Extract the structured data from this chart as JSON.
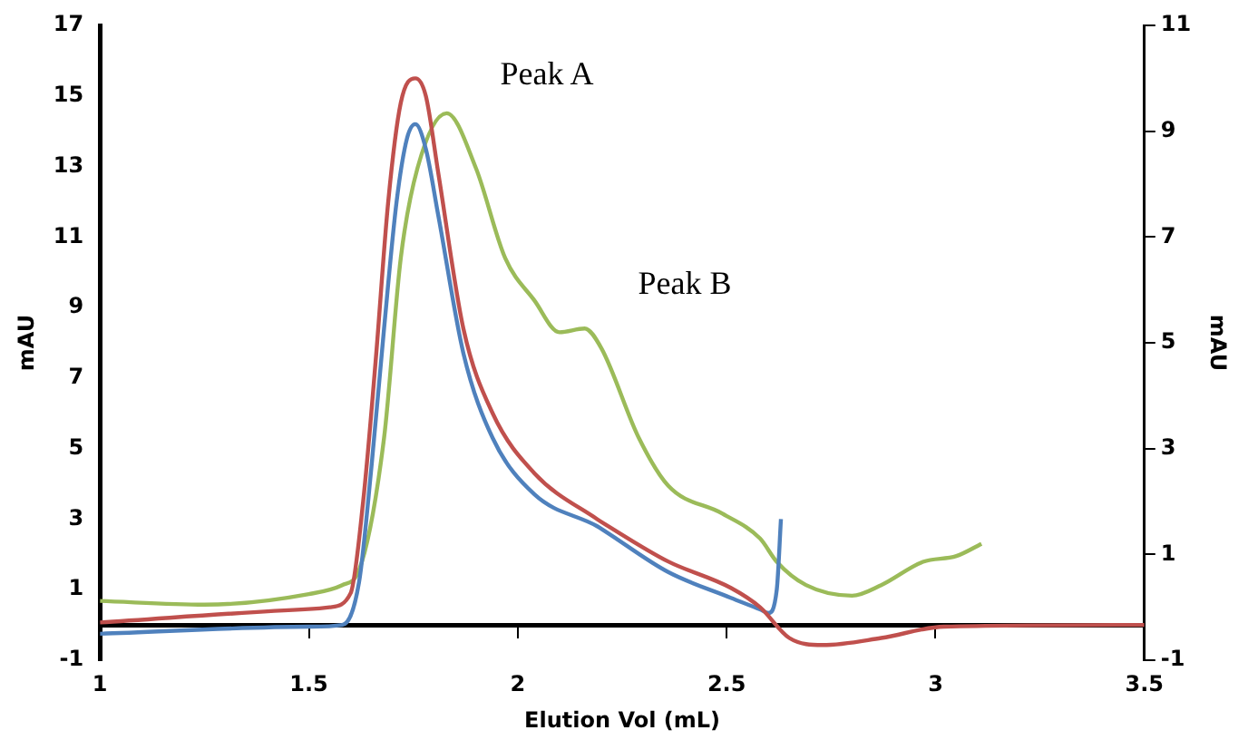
{
  "chart_data": {
    "type": "line",
    "xlabel": "Elution Vol (mL)",
    "ylabel": "mAU",
    "y2label": "mAU",
    "xlim": [
      1,
      3.5
    ],
    "xticks": [
      1,
      1.5,
      2,
      2.5,
      3,
      3.5
    ],
    "ylim": [
      -1,
      17
    ],
    "yticks": [
      -1,
      1,
      3,
      5,
      7,
      9,
      11,
      13,
      15,
      17
    ],
    "y2lim": [
      -1,
      11
    ],
    "y2ticks": [
      -1,
      1,
      3,
      5,
      7,
      9,
      11
    ],
    "grid": false,
    "legend": false,
    "marker": "none",
    "line_style": "solid",
    "annotations": [
      "Peak A",
      "Peak B"
    ],
    "series": [
      {
        "color": "#c0504d",
        "x": [
          1,
          1.5,
          1.55,
          1.6,
          1.63,
          1.66,
          1.69,
          1.72,
          1.755,
          1.78,
          1.81,
          1.87,
          1.94,
          2.04,
          2.19,
          2.21,
          2.36,
          2.51,
          2.58,
          2.65,
          2.73,
          2.87,
          3.02,
          3.5
        ],
        "values": [
          0.07,
          0.45,
          0.5,
          0.9,
          3.5,
          7.5,
          12,
          14.8,
          15.5,
          15,
          12.8,
          8.4,
          6,
          4.3,
          3,
          2.85,
          1.8,
          1.05,
          0.5,
          -0.37,
          -0.57,
          -0.37,
          -0.05,
          0
        ]
      },
      {
        "color": "#4f81bd",
        "x": [
          1,
          1.5,
          1.58,
          1.62,
          1.65,
          1.68,
          1.71,
          1.735,
          1.755,
          1.78,
          1.81,
          1.87,
          1.94,
          2.04,
          2.19,
          2.21,
          2.36,
          2.51,
          2.58,
          2.6,
          2.62,
          2.63
        ],
        "values": [
          -0.25,
          -0.05,
          0,
          1.2,
          4.5,
          8.4,
          12,
          13.8,
          14.2,
          13.5,
          11.6,
          7.7,
          5.3,
          3.7,
          2.8,
          2.65,
          1.5,
          0.77,
          0.44,
          0.34,
          1,
          3
        ]
      },
      {
        "color": "#9bbb59",
        "axis": "y2",
        "x": [
          1,
          1.25,
          1.5,
          1.58,
          1.62,
          1.68,
          1.72,
          1.76,
          1.83,
          1.9,
          1.97,
          2.04,
          2.1,
          2.16,
          2.2,
          2.29,
          2.36,
          2.49,
          2.58,
          2.62,
          2.69,
          2.8,
          2.87,
          2.97,
          3.05,
          3.11
        ],
        "values": [
          0.12,
          0.05,
          0.25,
          0.42,
          0.7,
          3.2,
          6.6,
          8.3,
          9.34,
          8.3,
          6.6,
          5.8,
          5.2,
          5.27,
          4.9,
          3.2,
          2.3,
          1.77,
          1.3,
          0.86,
          0.42,
          0.22,
          0.42,
          0.86,
          0.97,
          1.2
        ]
      }
    ]
  }
}
